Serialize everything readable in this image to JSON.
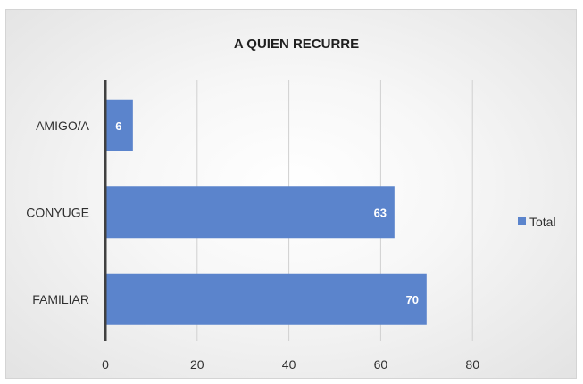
{
  "chart_data": {
    "type": "bar",
    "orientation": "horizontal",
    "title": "A QUIEN RECURRE",
    "categories": [
      "AMIGO/A",
      "CONYUGE",
      "FAMILIAR"
    ],
    "series": [
      {
        "name": "Total",
        "values": [
          6,
          63,
          70
        ],
        "color": "#5b84cc"
      }
    ],
    "xticks": [
      "0",
      "20",
      "40",
      "60",
      "80"
    ],
    "xlim": [
      0,
      100
    ],
    "grid": true,
    "legend": "right",
    "data_labels": [
      "6",
      "63",
      "70"
    ]
  }
}
